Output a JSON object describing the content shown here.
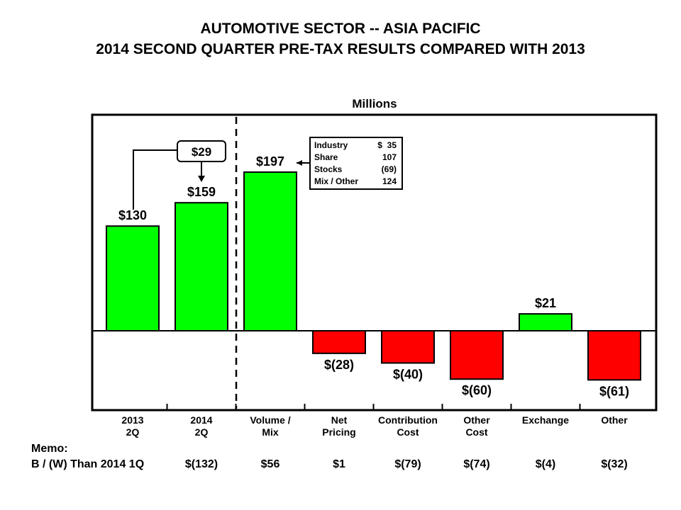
{
  "title_line1": "AUTOMOTIVE SECTOR -- ASIA PACIFIC",
  "title_line2": "2014 SECOND QUARTER PRE-TAX RESULTS COMPARED WITH 2013",
  "chart_data": {
    "type": "bar",
    "units": "Millions",
    "categories": [
      [
        "2013",
        "2Q"
      ],
      [
        "2014",
        "2Q"
      ],
      [
        "Volume /",
        "Mix"
      ],
      [
        "Net",
        "Pricing"
      ],
      [
        "Contribution",
        "Cost"
      ],
      [
        "Other",
        "Cost"
      ],
      [
        "Exchange",
        ""
      ],
      [
        "Other",
        ""
      ]
    ],
    "values": [
      130,
      159,
      197,
      -28,
      -40,
      -60,
      21,
      -61
    ],
    "labels": [
      "$130",
      "$159",
      "$197",
      "$(28)",
      "$(40)",
      "$(60)",
      "$21",
      "$(61)"
    ],
    "colors": {
      "positive": "#00ff00",
      "negative": "#ff0000"
    },
    "change_callout": "$29",
    "breakdown": [
      {
        "name": "Industry",
        "value": "$  35"
      },
      {
        "name": "Share",
        "value": "107"
      },
      {
        "name": "Stocks",
        "value": "(69)"
      },
      {
        "name": "Mix / Other",
        "value": "124"
      }
    ]
  },
  "memo": {
    "label": "Memo:",
    "row_label": "B / (W) Than 2014 1Q",
    "values": [
      "$(132)",
      "$56",
      "$1",
      "$(79)",
      "$(74)",
      "$(4)",
      "$(32)"
    ]
  }
}
